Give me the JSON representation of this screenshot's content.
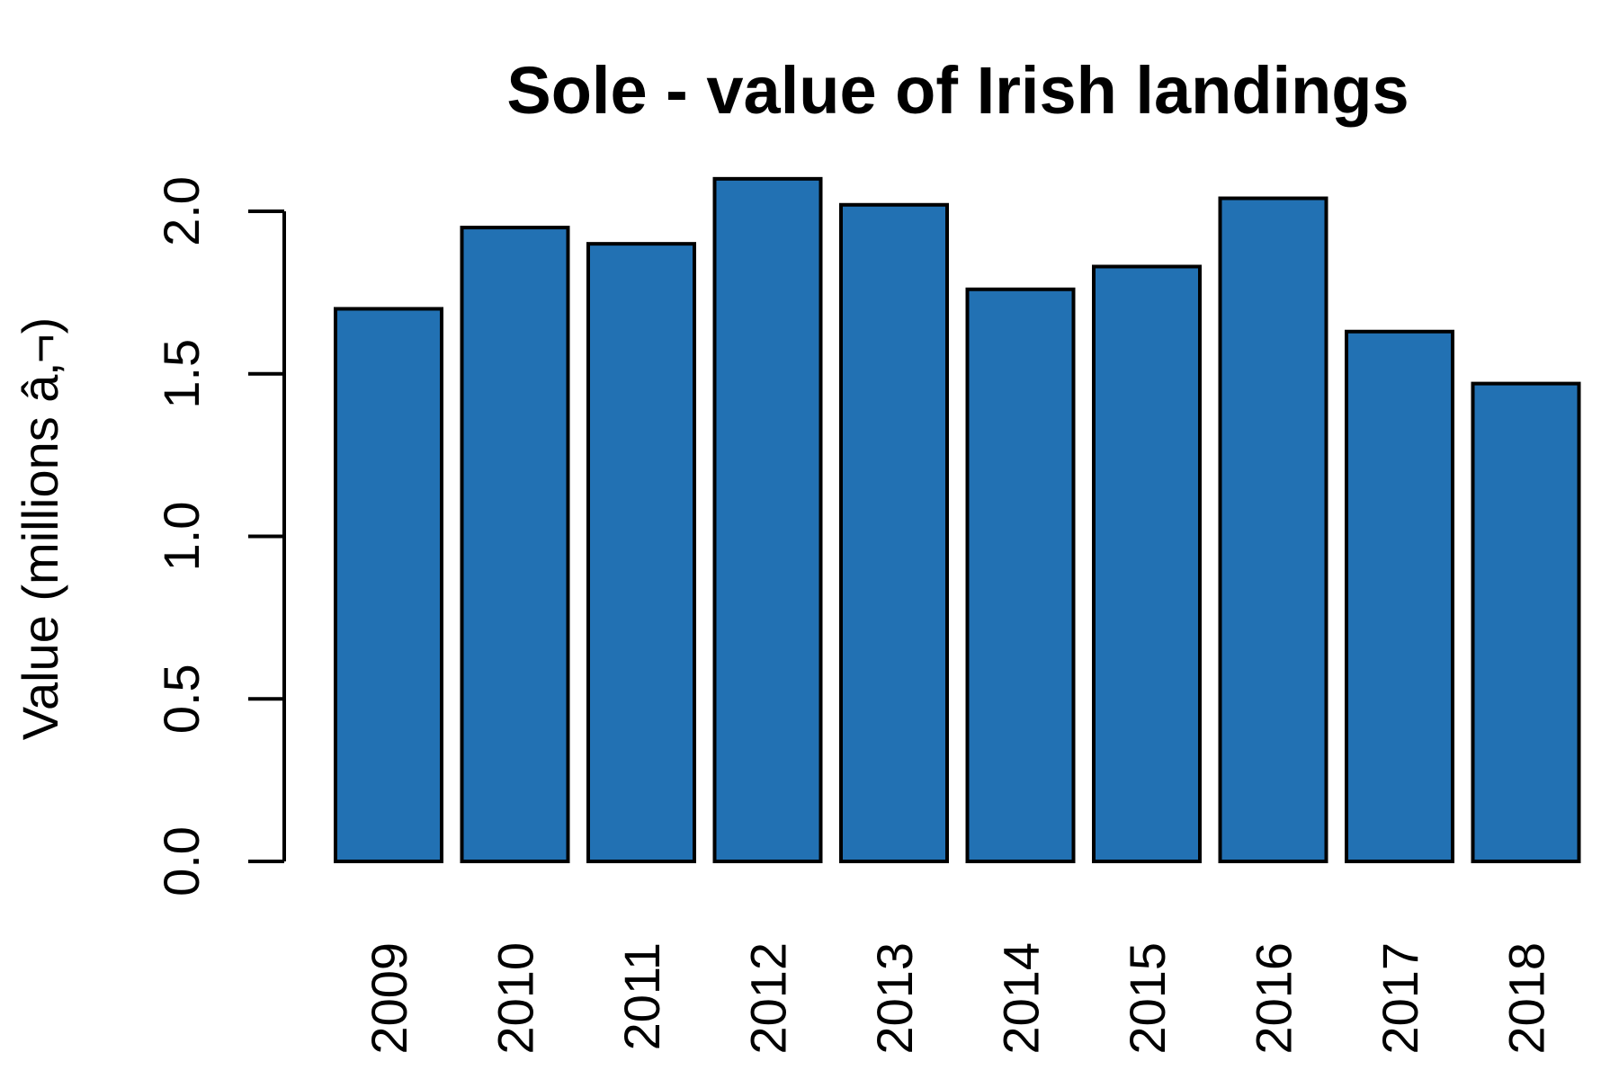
{
  "chart_data": {
    "type": "bar",
    "title": "Sole - value of Irish landings",
    "xlabel": "",
    "ylabel": "Value (millions â‚¬)",
    "categories": [
      "2009",
      "2010",
      "2011",
      "2012",
      "2013",
      "2014",
      "2015",
      "2016",
      "2017",
      "2018"
    ],
    "values": [
      1.7,
      1.95,
      1.9,
      2.1,
      2.02,
      1.76,
      1.83,
      2.04,
      1.63,
      1.47
    ],
    "ylim": [
      0,
      2.0
    ],
    "yticks": [
      "0.0",
      "0.5",
      "1.0",
      "1.5",
      "2.0"
    ],
    "grid": false,
    "legend": "none",
    "colors": {
      "bar_fill": "#2271b3",
      "bar_stroke": "#000000",
      "axis": "#000000",
      "text": "#000000"
    }
  }
}
